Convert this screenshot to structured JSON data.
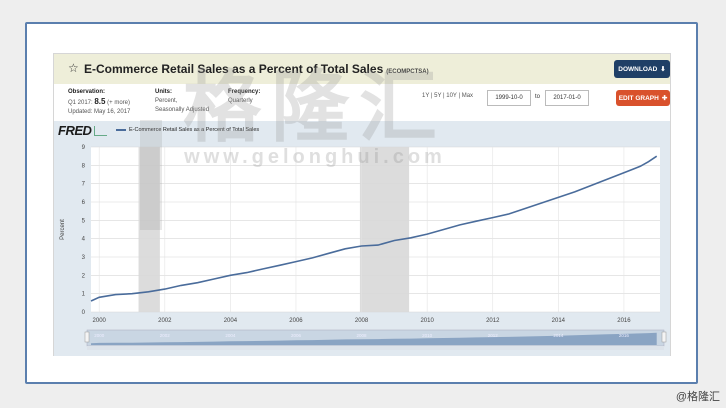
{
  "header": {
    "star_icon": "star-outline-icon",
    "title": "E-Commerce Retail Sales as a Percent of Total Sales",
    "series_code": "(ECOMPCTSA)",
    "download_label": "DOWNLOAD",
    "edit_label": "EDIT GRAPH"
  },
  "meta": {
    "observation_label": "Observation:",
    "observation_period": "Q1 2017:",
    "observation_value": "8.5",
    "observation_more": "(+ more)",
    "updated": "Updated: May 16, 2017",
    "units_label": "Units:",
    "units_line1": "Percent,",
    "units_line2": "Seasonally Adjusted",
    "frequency_label": "Frequency:",
    "frequency_value": "Quarterly"
  },
  "range": {
    "presets": "1Y | 5Y | 10Y | Max",
    "start": "1999-10-0",
    "to_label": "to",
    "end": "2017-01-0"
  },
  "fred": {
    "logo": "FRED",
    "legend": "E-Commerce Retail Sales as a Percent of Total Sales"
  },
  "watermark": {
    "cn": "格隆汇",
    "en": "www.gelonghui.com"
  },
  "corner_mark": "@格隆汇",
  "colors": {
    "line": "#4a6c9b",
    "download": "#1f3f66",
    "edit": "#d9512c",
    "recession": "#dcdcdc"
  },
  "chart_data": {
    "type": "line",
    "xlabel": "",
    "ylabel": "Percent",
    "xlim": [
      1999.75,
      2017.1
    ],
    "ylim": [
      0,
      9
    ],
    "x_ticks": [
      "2000",
      "2002",
      "2004",
      "2006",
      "2008",
      "2010",
      "2012",
      "2014",
      "2016"
    ],
    "y_ticks": [
      "0",
      "1",
      "2",
      "3",
      "4",
      "5",
      "6",
      "7",
      "8",
      "9"
    ],
    "navigator_ticks": [
      "2000",
      "2002",
      "2004",
      "2006",
      "2008",
      "2010",
      "2012",
      "2014",
      "2016"
    ],
    "recessions": [
      [
        2001.2,
        2001.85
      ],
      [
        2007.95,
        2009.45
      ]
    ],
    "grid": true,
    "series": [
      {
        "x": [
          1999.75,
          2000.0,
          2000.5,
          2001.0,
          2001.5,
          2002.0,
          2002.5,
          2003.0,
          2003.5,
          2004.0,
          2004.5,
          2005.0,
          2005.5,
          2006.0,
          2006.5,
          2007.0,
          2007.5,
          2008.0,
          2008.5,
          2009.0,
          2009.5,
          2010.0,
          2010.5,
          2011.0,
          2011.5,
          2012.0,
          2012.5,
          2013.0,
          2013.5,
          2014.0,
          2014.5,
          2015.0,
          2015.5,
          2016.0,
          2016.5,
          2016.75,
          2017.0
        ],
        "values": [
          0.6,
          0.8,
          0.95,
          1.0,
          1.1,
          1.25,
          1.45,
          1.6,
          1.8,
          2.0,
          2.15,
          2.35,
          2.55,
          2.75,
          2.95,
          3.2,
          3.45,
          3.6,
          3.65,
          3.9,
          4.05,
          4.25,
          4.5,
          4.75,
          4.95,
          5.15,
          5.35,
          5.65,
          5.95,
          6.25,
          6.55,
          6.9,
          7.25,
          7.6,
          7.95,
          8.2,
          8.5
        ]
      }
    ]
  }
}
